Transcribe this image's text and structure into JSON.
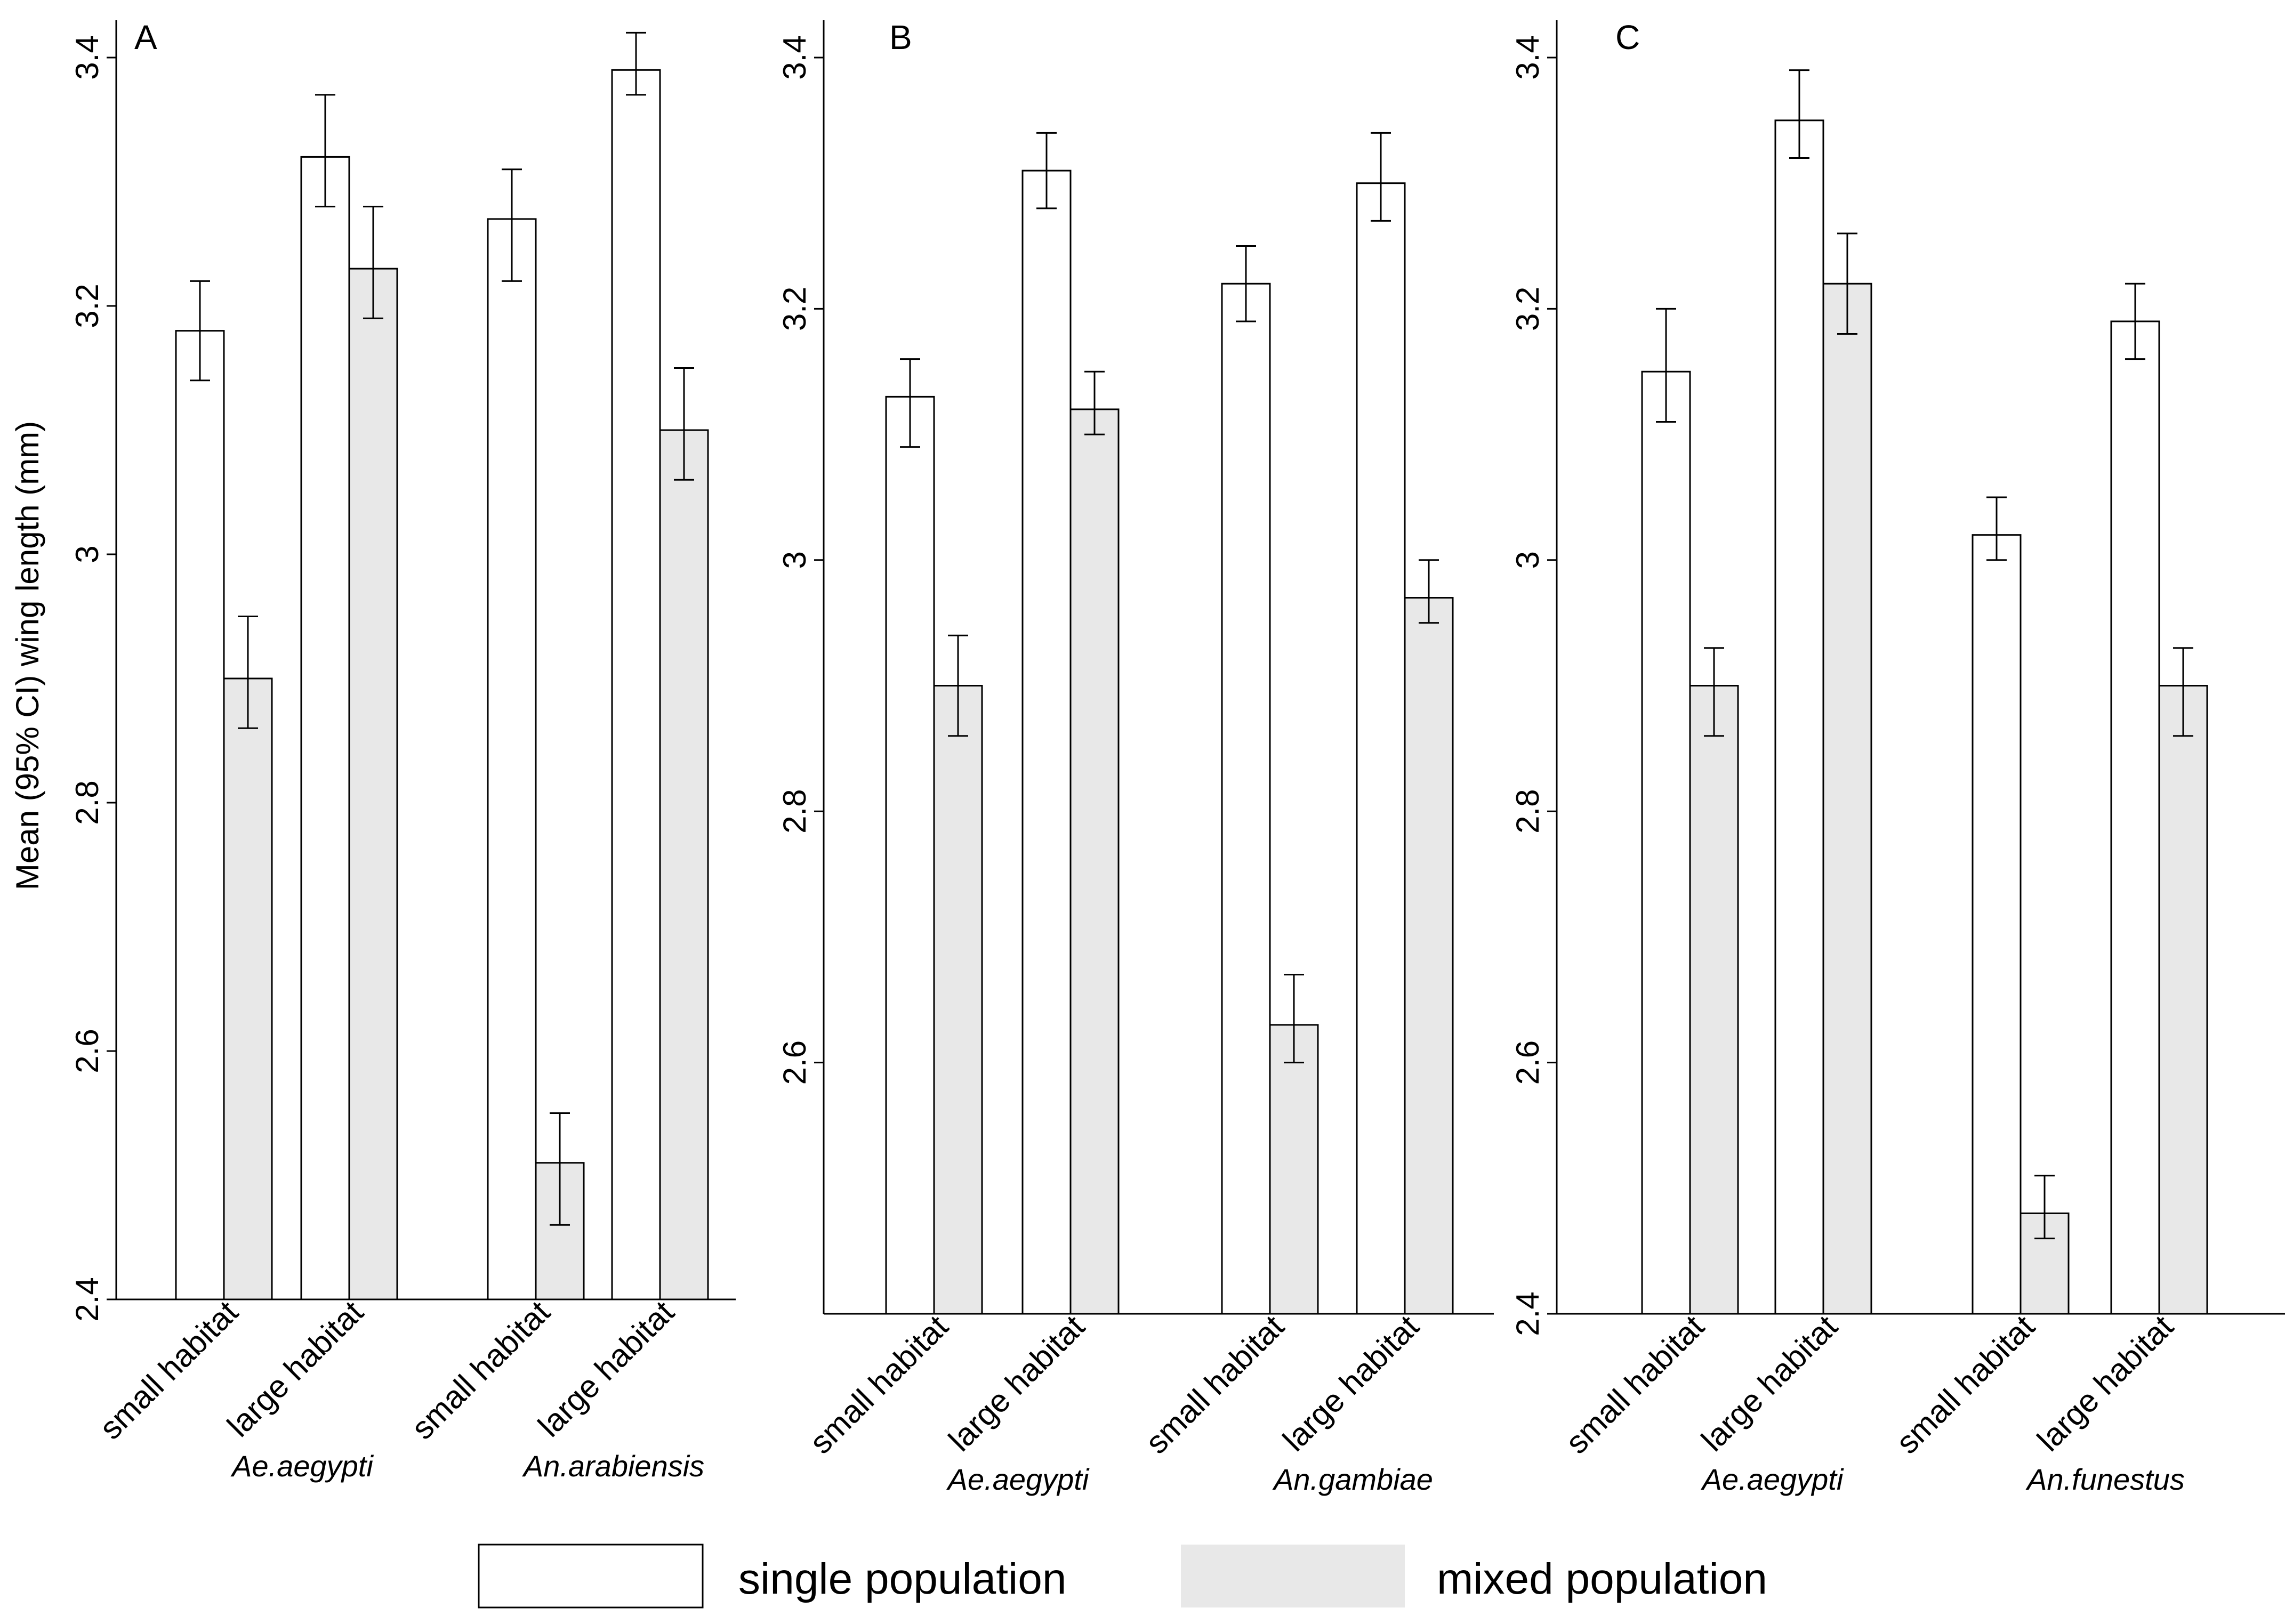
{
  "chart_data": {
    "type": "bar",
    "ylabel": "Mean (95% CI) wing length (mm)",
    "legend": {
      "position": "bottom",
      "entries": [
        {
          "name": "single population",
          "color": "#ffffff"
        },
        {
          "name": "mixed population",
          "color": "#e8e8e8"
        }
      ]
    },
    "panels": [
      {
        "letter": "A",
        "ylim": [
          2.4,
          3.42
        ],
        "yticks": [
          "2.4",
          "2.6",
          "2.8",
          "3",
          "3.2",
          "3.4"
        ],
        "groups": [
          {
            "species": "Ae.aegypti",
            "categories": [
              {
                "label": "small habitat",
                "single": {
                  "mean": 3.18,
                  "lo": 3.14,
                  "hi": 3.22
                },
                "mixed": {
                  "mean": 2.9,
                  "lo": 2.86,
                  "hi": 2.95
                }
              },
              {
                "label": "large habitat",
                "single": {
                  "mean": 3.32,
                  "lo": 3.28,
                  "hi": 3.37
                },
                "mixed": {
                  "mean": 3.23,
                  "lo": 3.19,
                  "hi": 3.28
                }
              }
            ]
          },
          {
            "species": "An.arabiensis",
            "categories": [
              {
                "label": "small habitat",
                "single": {
                  "mean": 3.27,
                  "lo": 3.22,
                  "hi": 3.31
                },
                "mixed": {
                  "mean": 2.51,
                  "lo": 2.46,
                  "hi": 2.55
                }
              },
              {
                "label": "large habitat",
                "single": {
                  "mean": 3.39,
                  "lo": 3.37,
                  "hi": 3.42
                },
                "mixed": {
                  "mean": 3.1,
                  "lo": 3.06,
                  "hi": 3.15
                }
              }
            ]
          }
        ]
      },
      {
        "letter": "B",
        "ylim": [
          2.4,
          3.42
        ],
        "yticks": [
          "2.6",
          "2.8",
          "3",
          "3.2",
          "3.4"
        ],
        "groups": [
          {
            "species": "Ae.aegypti",
            "categories": [
              {
                "label": "small habitat",
                "single": {
                  "mean": 3.13,
                  "lo": 3.09,
                  "hi": 3.16
                },
                "mixed": {
                  "mean": 2.9,
                  "lo": 2.86,
                  "hi": 2.94
                }
              },
              {
                "label": "large habitat",
                "single": {
                  "mean": 3.31,
                  "lo": 3.28,
                  "hi": 3.34
                },
                "mixed": {
                  "mean": 3.12,
                  "lo": 3.1,
                  "hi": 3.15
                }
              }
            ]
          },
          {
            "species": "An.gambiae",
            "categories": [
              {
                "label": "small habitat",
                "single": {
                  "mean": 3.22,
                  "lo": 3.19,
                  "hi": 3.25
                },
                "mixed": {
                  "mean": 2.63,
                  "lo": 2.6,
                  "hi": 2.67
                }
              },
              {
                "label": "large habitat",
                "single": {
                  "mean": 3.3,
                  "lo": 3.27,
                  "hi": 3.34
                },
                "mixed": {
                  "mean": 2.97,
                  "lo": 2.95,
                  "hi": 3.0
                }
              }
            ]
          }
        ]
      },
      {
        "letter": "C",
        "ylim": [
          2.4,
          3.42
        ],
        "yticks": [
          "2.4",
          "2.6",
          "2.8",
          "3",
          "3.2",
          "3.4"
        ],
        "groups": [
          {
            "species": "Ae.aegypti",
            "categories": [
              {
                "label": "small habitat",
                "single": {
                  "mean": 3.15,
                  "lo": 3.11,
                  "hi": 3.2
                },
                "mixed": {
                  "mean": 2.9,
                  "lo": 2.86,
                  "hi": 2.93
                }
              },
              {
                "label": "large habitat",
                "single": {
                  "mean": 3.35,
                  "lo": 3.32,
                  "hi": 3.39
                },
                "mixed": {
                  "mean": 3.22,
                  "lo": 3.18,
                  "hi": 3.26
                }
              }
            ]
          },
          {
            "species": "An.funestus",
            "categories": [
              {
                "label": "small habitat",
                "single": {
                  "mean": 3.02,
                  "lo": 3.0,
                  "hi": 3.05
                },
                "mixed": {
                  "mean": 2.48,
                  "lo": 2.46,
                  "hi": 2.51
                }
              },
              {
                "label": "large habitat",
                "single": {
                  "mean": 3.19,
                  "lo": 3.16,
                  "hi": 3.22
                },
                "mixed": {
                  "mean": 2.9,
                  "lo": 2.86,
                  "hi": 2.93
                }
              }
            ]
          }
        ]
      }
    ]
  }
}
